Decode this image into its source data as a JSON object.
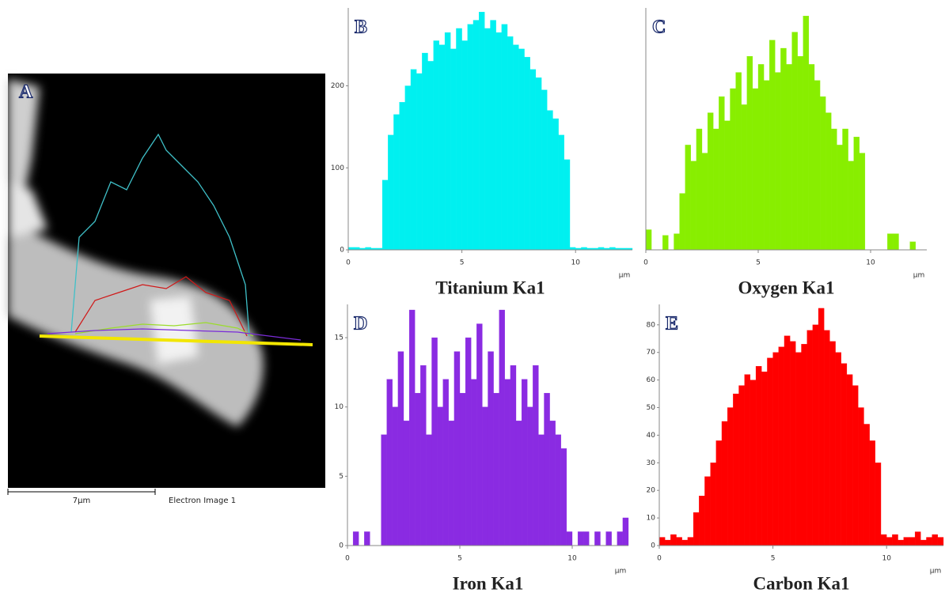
{
  "image_panel": {
    "label": "A",
    "scale_label": "7µm",
    "caption": "Electron Image 1"
  },
  "chart_data": [
    {
      "type": "histogram",
      "panel_label": "B",
      "title": "Titanium Ka1",
      "x_unit": "µm",
      "color": "#00f0f0",
      "bins": [
        0,
        0.25,
        0.5,
        0.75,
        1,
        1.25,
        1.5,
        1.75,
        2,
        2.25,
        2.5,
        2.75,
        3,
        3.25,
        3.5,
        3.75,
        4,
        4.25,
        4.5,
        4.75,
        5,
        5.25,
        5.5,
        5.75,
        6,
        6.25,
        6.5,
        6.75,
        7,
        7.25,
        7.5,
        7.75,
        8,
        8.25,
        8.5,
        8.75,
        9,
        9.25,
        9.5,
        9.75,
        10,
        10.25,
        10.5,
        10.75,
        11,
        11.25,
        11.5,
        11.75,
        12,
        12.25,
        12.5
      ],
      "values": [
        3,
        3,
        2,
        3,
        2,
        2,
        85,
        140,
        165,
        180,
        200,
        220,
        215,
        240,
        230,
        255,
        250,
        265,
        245,
        270,
        255,
        275,
        280,
        290,
        270,
        280,
        265,
        275,
        260,
        250,
        245,
        235,
        220,
        210,
        195,
        170,
        160,
        140,
        110,
        3,
        2,
        3,
        2,
        2,
        3,
        2,
        3,
        2,
        2,
        2
      ],
      "xlim": [
        0,
        12.5
      ],
      "xticks": [
        0,
        5,
        10
      ],
      "ylim": [
        0,
        295
      ],
      "yticks": [
        0,
        100,
        200
      ]
    },
    {
      "type": "histogram",
      "panel_label": "C",
      "title": "Oxygen Ka1",
      "x_unit": "µm",
      "color": "#88ee00",
      "bins": [
        0,
        0.25,
        0.5,
        0.75,
        1,
        1.25,
        1.5,
        1.75,
        2,
        2.25,
        2.5,
        2.75,
        3,
        3.25,
        3.5,
        3.75,
        4,
        4.25,
        4.5,
        4.75,
        5,
        5.25,
        5.5,
        5.75,
        6,
        6.25,
        6.5,
        6.75,
        7,
        7.25,
        7.5,
        7.75,
        8,
        8.25,
        8.5,
        8.75,
        9,
        9.25,
        9.5,
        9.75,
        10,
        10.25,
        10.5,
        10.75,
        11,
        11.25,
        11.5,
        11.75,
        12,
        12.25,
        12.5
      ],
      "values": [
        25,
        0,
        0,
        18,
        0,
        20,
        70,
        130,
        110,
        150,
        120,
        170,
        150,
        190,
        160,
        200,
        220,
        180,
        240,
        200,
        230,
        210,
        260,
        220,
        250,
        230,
        270,
        240,
        290,
        230,
        210,
        190,
        170,
        150,
        130,
        150,
        110,
        140,
        120,
        0,
        0,
        0,
        0,
        20,
        20,
        0,
        0,
        10,
        0,
        0
      ],
      "xlim": [
        0,
        12.5
      ],
      "xticks": [
        0,
        5,
        10
      ],
      "ylim": [
        0,
        300
      ]
    },
    {
      "type": "histogram",
      "panel_label": "D",
      "title": "Iron Ka1",
      "x_unit": "µm",
      "color": "#8a2be2",
      "bins": [
        0,
        0.25,
        0.5,
        0.75,
        1,
        1.25,
        1.5,
        1.75,
        2,
        2.25,
        2.5,
        2.75,
        3,
        3.25,
        3.5,
        3.75,
        4,
        4.25,
        4.5,
        4.75,
        5,
        5.25,
        5.5,
        5.75,
        6,
        6.25,
        6.5,
        6.75,
        7,
        7.25,
        7.5,
        7.75,
        8,
        8.25,
        8.5,
        8.75,
        9,
        9.25,
        9.5,
        9.75,
        10,
        10.25,
        10.5,
        10.75,
        11,
        11.25,
        11.5,
        11.75,
        12,
        12.25,
        12.5
      ],
      "values": [
        0,
        1,
        0,
        1,
        0,
        0,
        8,
        12,
        10,
        14,
        9,
        17,
        11,
        13,
        8,
        15,
        10,
        12,
        9,
        14,
        11,
        15,
        12,
        16,
        10,
        14,
        11,
        17,
        12,
        13,
        9,
        12,
        10,
        13,
        8,
        11,
        9,
        8,
        7,
        1,
        0,
        1,
        1,
        0,
        1,
        0,
        1,
        0,
        1,
        2
      ],
      "xlim": [
        0,
        12.5
      ],
      "xticks": [
        0,
        5,
        10
      ],
      "ylim": [
        0,
        17.4
      ],
      "yticks": [
        0,
        5,
        10,
        15
      ]
    },
    {
      "type": "histogram",
      "panel_label": "E",
      "title": "Carbon Ka1",
      "x_unit": "µm",
      "color": "#ff0000",
      "bins": [
        0,
        0.25,
        0.5,
        0.75,
        1,
        1.25,
        1.5,
        1.75,
        2,
        2.25,
        2.5,
        2.75,
        3,
        3.25,
        3.5,
        3.75,
        4,
        4.25,
        4.5,
        4.75,
        5,
        5.25,
        5.5,
        5.75,
        6,
        6.25,
        6.5,
        6.75,
        7,
        7.25,
        7.5,
        7.75,
        8,
        8.25,
        8.5,
        8.75,
        9,
        9.25,
        9.5,
        9.75,
        10,
        10.25,
        10.5,
        10.75,
        11,
        11.25,
        11.5,
        11.75,
        12,
        12.25,
        12.5
      ],
      "values": [
        3,
        2,
        4,
        3,
        2,
        3,
        12,
        18,
        25,
        30,
        38,
        45,
        50,
        55,
        58,
        62,
        60,
        65,
        63,
        68,
        70,
        72,
        76,
        74,
        70,
        73,
        78,
        80,
        86,
        78,
        74,
        70,
        66,
        62,
        58,
        50,
        44,
        38,
        30,
        4,
        3,
        4,
        2,
        3,
        3,
        5,
        2,
        3,
        4,
        3
      ],
      "xlim": [
        0,
        12.5
      ],
      "xticks": [
        0,
        5,
        10
      ],
      "ylim": [
        0,
        87.4
      ],
      "yticks": [
        0,
        10,
        20,
        30,
        40,
        50,
        60,
        70,
        80
      ]
    }
  ]
}
